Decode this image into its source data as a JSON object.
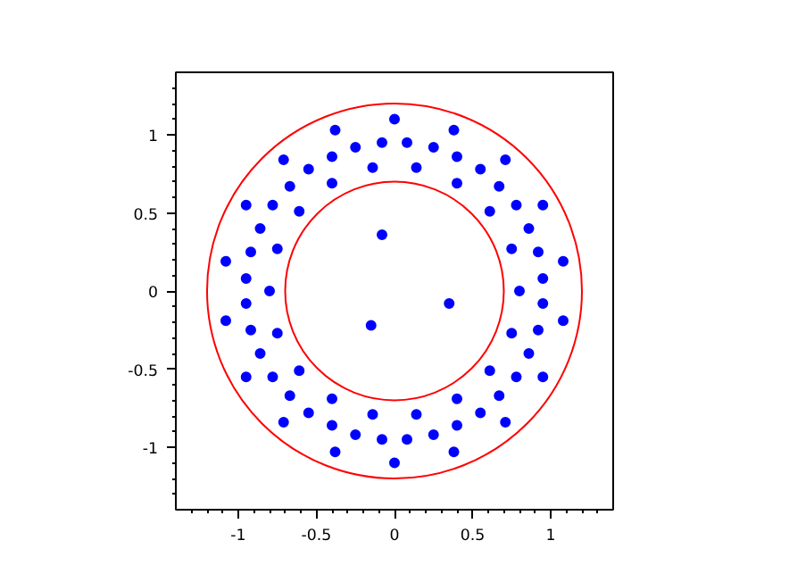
{
  "chart_data": {
    "type": "scatter",
    "marker": "circle",
    "grid": false,
    "xlim": [
      -1.4,
      1.4
    ],
    "ylim": [
      -1.4,
      1.4
    ],
    "xticks": [
      {
        "value": -1.3,
        "label": null
      },
      {
        "value": -1.2,
        "label": null
      },
      {
        "value": -1.1,
        "label": null
      },
      {
        "value": -1,
        "label": "-1"
      },
      {
        "value": -0.9,
        "label": null
      },
      {
        "value": -0.8,
        "label": null
      },
      {
        "value": -0.7,
        "label": null
      },
      {
        "value": -0.6,
        "label": null
      },
      {
        "value": -0.5,
        "label": "-0.5"
      },
      {
        "value": -0.4,
        "label": null
      },
      {
        "value": -0.3,
        "label": null
      },
      {
        "value": -0.2,
        "label": null
      },
      {
        "value": -0.1,
        "label": null
      },
      {
        "value": 0,
        "label": "0"
      },
      {
        "value": 0.1,
        "label": null
      },
      {
        "value": 0.2,
        "label": null
      },
      {
        "value": 0.3,
        "label": null
      },
      {
        "value": 0.4,
        "label": null
      },
      {
        "value": 0.5,
        "label": "0.5"
      },
      {
        "value": 0.6,
        "label": null
      },
      {
        "value": 0.7,
        "label": null
      },
      {
        "value": 0.8,
        "label": null
      },
      {
        "value": 0.9,
        "label": null
      },
      {
        "value": 1,
        "label": "1"
      },
      {
        "value": 1.1,
        "label": null
      },
      {
        "value": 1.2,
        "label": null
      },
      {
        "value": 1.3,
        "label": null
      }
    ],
    "yticks": [
      {
        "value": -1.3,
        "label": null
      },
      {
        "value": -1.2,
        "label": null
      },
      {
        "value": -1.1,
        "label": null
      },
      {
        "value": -1,
        "label": "-1"
      },
      {
        "value": -0.9,
        "label": null
      },
      {
        "value": -0.8,
        "label": null
      },
      {
        "value": -0.7,
        "label": null
      },
      {
        "value": -0.6,
        "label": null
      },
      {
        "value": -0.5,
        "label": "-0.5"
      },
      {
        "value": -0.4,
        "label": null
      },
      {
        "value": -0.3,
        "label": null
      },
      {
        "value": -0.2,
        "label": null
      },
      {
        "value": -0.1,
        "label": null
      },
      {
        "value": 0,
        "label": "0"
      },
      {
        "value": 0.1,
        "label": null
      },
      {
        "value": 0.2,
        "label": null
      },
      {
        "value": 0.3,
        "label": null
      },
      {
        "value": 0.4,
        "label": null
      },
      {
        "value": 0.5,
        "label": "0.5"
      },
      {
        "value": 0.6,
        "label": null
      },
      {
        "value": 0.7,
        "label": null
      },
      {
        "value": 0.8,
        "label": null
      },
      {
        "value": 0.9,
        "label": null
      },
      {
        "value": 1,
        "label": "1"
      },
      {
        "value": 1.1,
        "label": null
      },
      {
        "value": 1.2,
        "label": null
      },
      {
        "value": 1.3,
        "label": null
      }
    ],
    "series": [
      {
        "color": "#0000ff",
        "x": [
          0.8,
          1.08,
          0.75,
          0.95,
          0.61,
          0.71,
          0.4,
          0.38,
          0.14,
          0,
          -0.14,
          -0.38,
          -0.4,
          -0.71,
          -0.61,
          -0.95,
          -0.75,
          -1.08,
          -0.8,
          -1.08,
          -0.75,
          -0.95,
          -0.61,
          -0.71,
          -0.4,
          -0.38,
          -0.14,
          0,
          0.14,
          0.38,
          0.4,
          0.71,
          0.61,
          0.95,
          0.75,
          1.08,
          0.95,
          0.92,
          0.86,
          0.78,
          0.67,
          0.55,
          0.4,
          0.25,
          0.08,
          -0.08,
          -0.25,
          -0.4,
          -0.55,
          -0.67,
          -0.78,
          -0.86,
          -0.92,
          -0.95,
          -0.95,
          -0.92,
          -0.86,
          -0.78,
          -0.67,
          -0.55,
          -0.4,
          -0.25,
          -0.08,
          0.08,
          0.25,
          0.4,
          0.55,
          0.67,
          0.78,
          0.86,
          0.92,
          0.95,
          -0.08,
          0.35,
          -0.15
        ],
        "values": [
          0,
          0.19,
          0.27,
          0.55,
          0.51,
          0.84,
          0.69,
          1.03,
          0.79,
          1.1,
          0.79,
          1.03,
          0.69,
          0.84,
          0.51,
          0.55,
          0.27,
          0.19,
          0,
          -0.19,
          -0.27,
          -0.55,
          -0.51,
          -0.84,
          -0.69,
          -1.03,
          -0.79,
          -1.1,
          -0.79,
          -1.03,
          -0.69,
          -0.84,
          -0.51,
          -0.55,
          -0.27,
          -0.19,
          0.08,
          0.25,
          0.4,
          0.55,
          0.67,
          0.78,
          0.86,
          0.92,
          0.95,
          0.95,
          0.92,
          0.86,
          0.78,
          0.67,
          0.55,
          0.4,
          0.25,
          0.08,
          -0.08,
          -0.25,
          -0.4,
          -0.55,
          -0.67,
          -0.78,
          -0.86,
          -0.92,
          -0.95,
          -0.95,
          -0.92,
          -0.86,
          -0.78,
          -0.67,
          -0.55,
          -0.4,
          -0.25,
          -0.08,
          0.36,
          -0.08,
          -0.22
        ]
      }
    ]
  }
}
